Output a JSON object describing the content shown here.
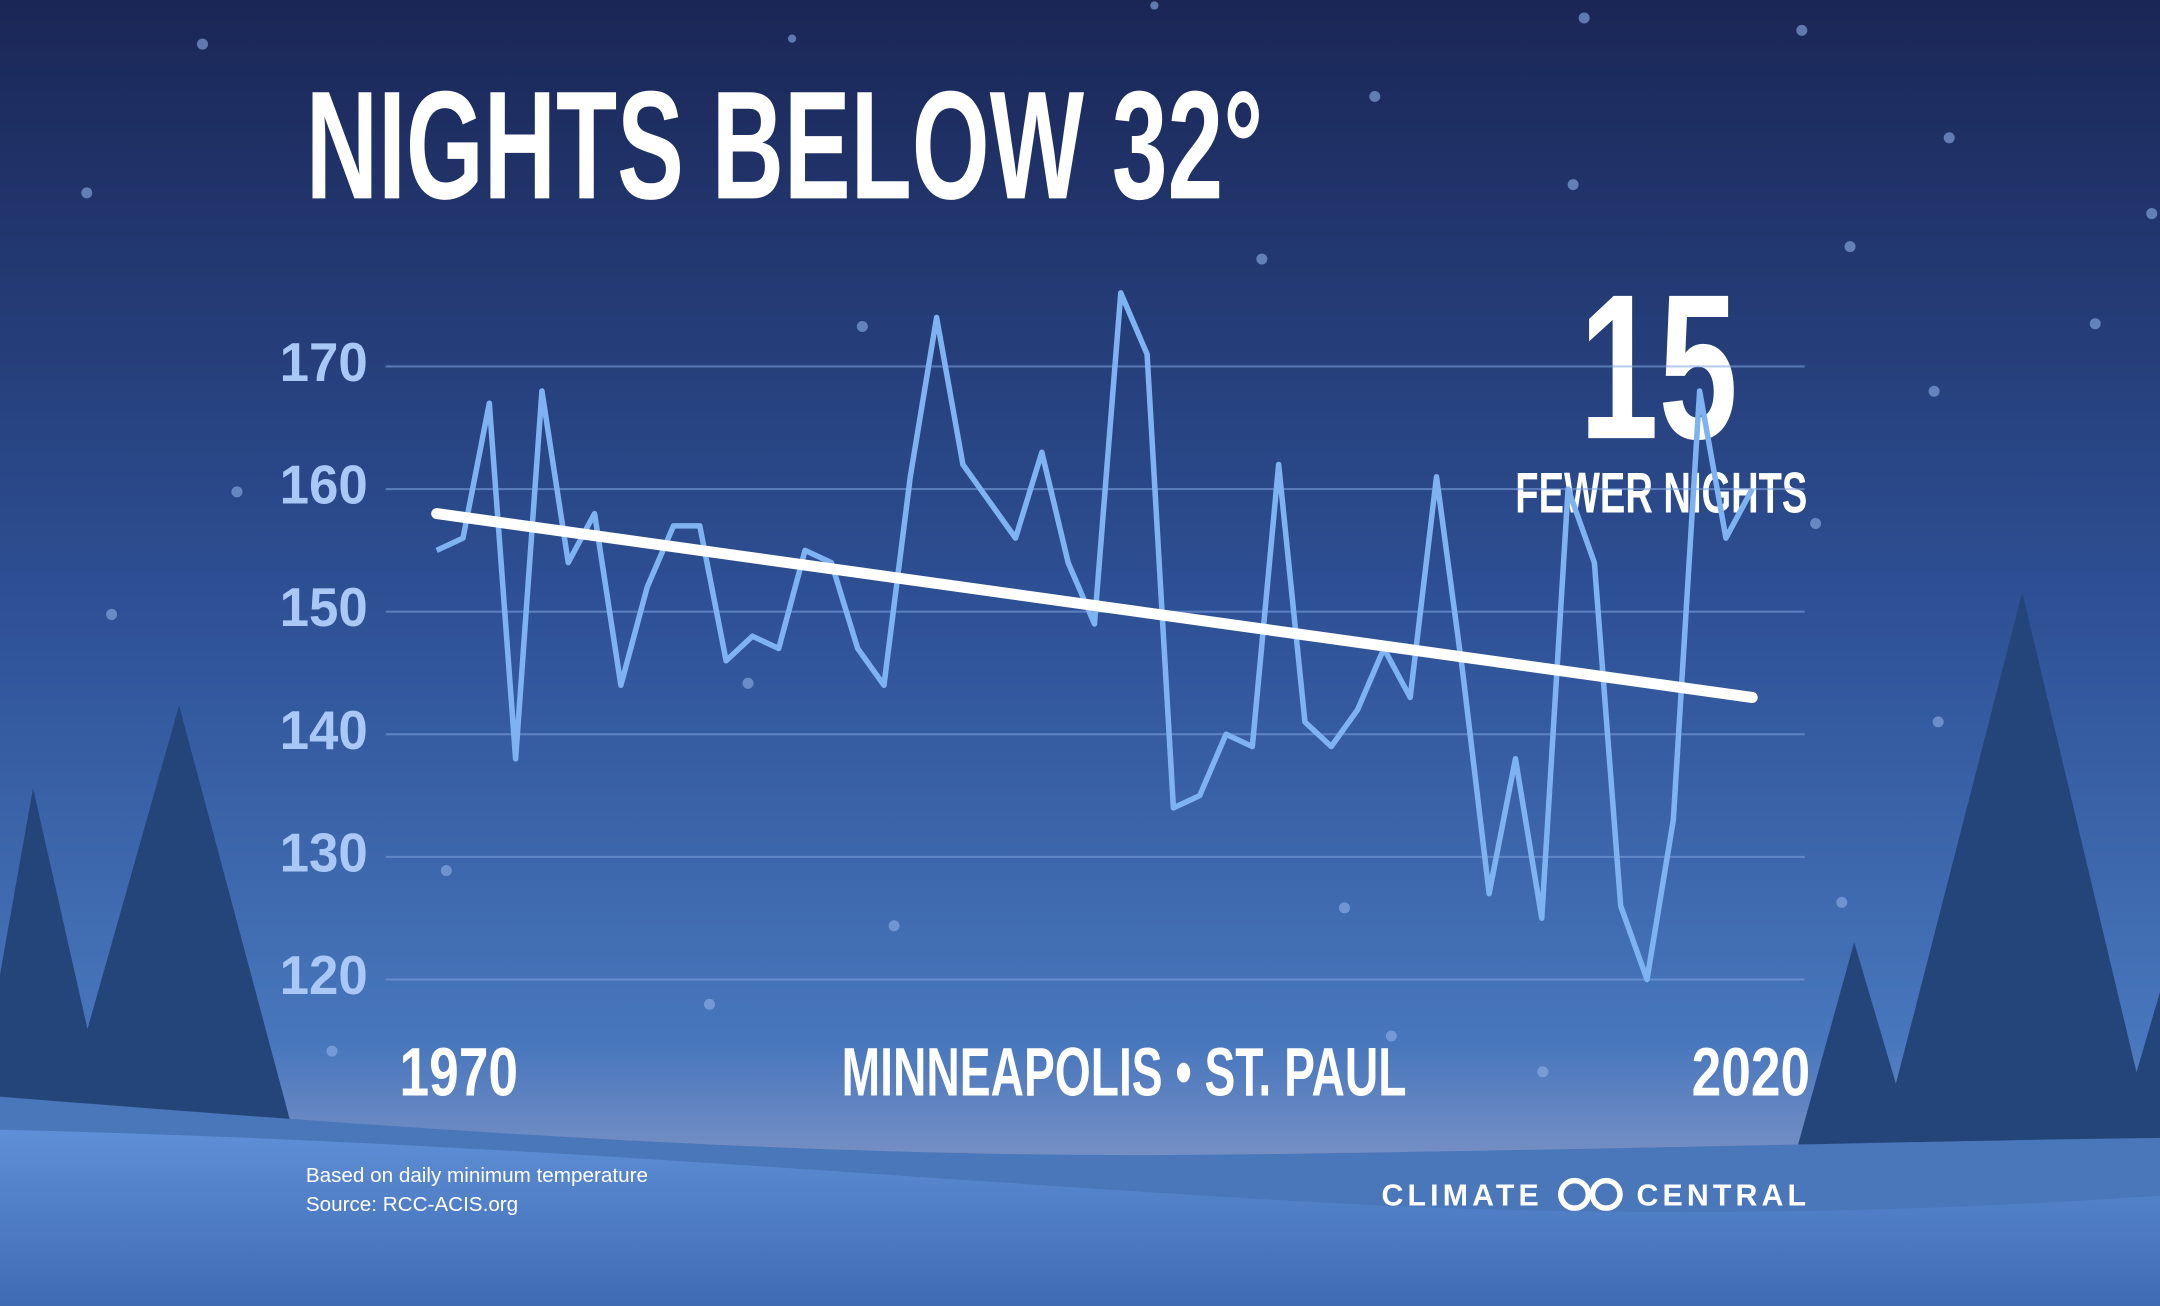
{
  "chart_data": {
    "type": "line",
    "title": "NIGHTS BELOW 32°",
    "x_label": "MINNEAPOLIS • ST. PAUL",
    "x": [
      1970,
      1971,
      1972,
      1973,
      1974,
      1975,
      1976,
      1977,
      1978,
      1979,
      1980,
      1981,
      1982,
      1983,
      1984,
      1985,
      1986,
      1987,
      1988,
      1989,
      1990,
      1991,
      1992,
      1993,
      1994,
      1995,
      1996,
      1997,
      1998,
      1999,
      2000,
      2001,
      2002,
      2003,
      2004,
      2005,
      2006,
      2007,
      2008,
      2009,
      2010,
      2011,
      2012,
      2013,
      2014,
      2015,
      2016,
      2017,
      2018,
      2019,
      2020
    ],
    "series": [
      {
        "color": "#7fb2f0",
        "values": [
          155,
          156,
          167,
          138,
          168,
          154,
          158,
          144,
          152,
          157,
          157,
          146,
          148,
          147,
          155,
          154,
          147,
          144,
          161,
          174,
          162,
          159,
          156,
          163,
          154,
          149,
          176,
          171,
          134,
          135,
          140,
          139,
          162,
          141,
          139,
          142,
          147,
          143,
          161,
          145,
          127,
          138,
          125,
          160,
          154,
          126,
          120,
          133,
          168,
          156,
          160
        ]
      }
    ],
    "trend": {
      "x": [
        1970,
        2020
      ],
      "values": [
        158,
        143
      ],
      "color": "#ffffff"
    },
    "xlim": [
      1970,
      2020
    ],
    "xticks": [
      1970,
      2020
    ],
    "ylim": [
      120,
      170
    ],
    "yticks": [
      120,
      130,
      140,
      150,
      160,
      170
    ],
    "grid": true,
    "annotation": {
      "number": 15,
      "text": "FEWER NIGHTS"
    },
    "notes": [
      "Based on daily minimum temperature",
      "Source: RCC-ACIS.org"
    ],
    "brand": [
      "CLIMATE",
      "CENTRAL"
    ]
  }
}
